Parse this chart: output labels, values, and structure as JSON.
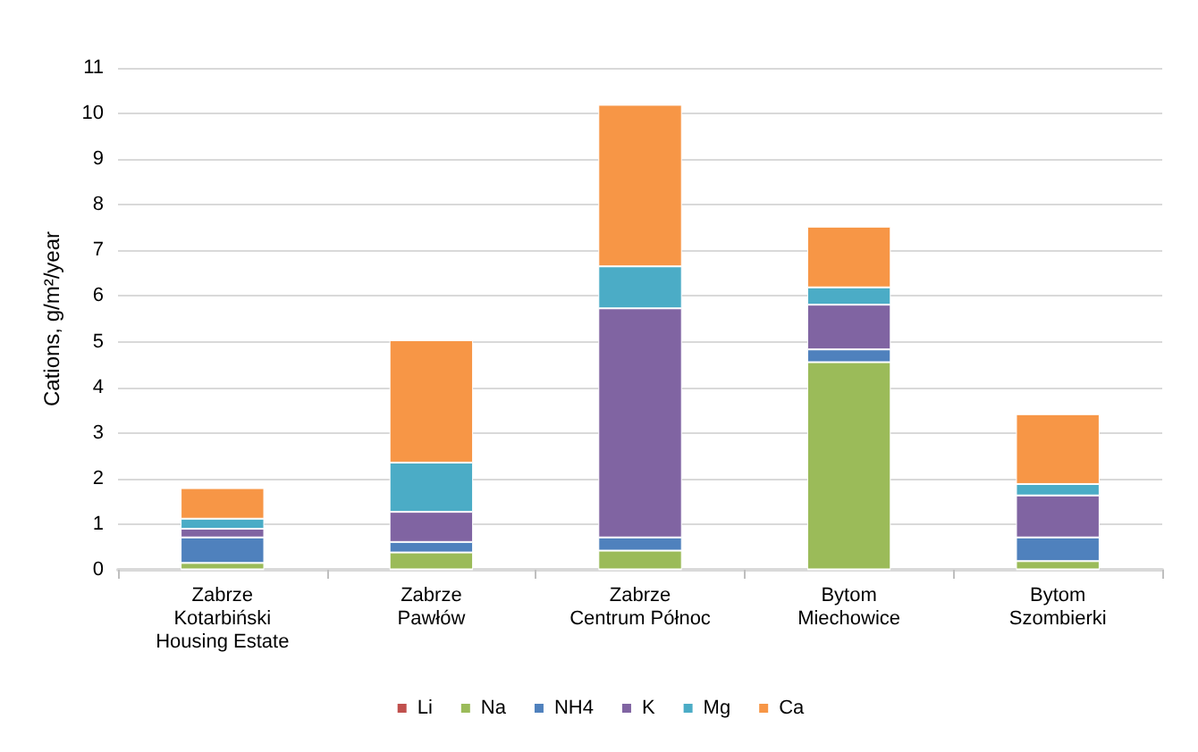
{
  "chart_data": {
    "type": "bar",
    "stacked": true,
    "ylabel": "Cations, g/m²/year",
    "categories": [
      "Zabrze\nKotarbiński\nHousing Estate",
      "Zabrze\nPawłów",
      "Zabrze\nCentrum Północ",
      "Bytom\nMiechowice",
      "Bytom\nSzombierki"
    ],
    "series": [
      {
        "name": "Li",
        "color": "#c0504d",
        "values": [
          0.01,
          0.01,
          0.01,
          0.01,
          0.01
        ]
      },
      {
        "name": "Na",
        "color": "#9bbb59",
        "values": [
          0.14,
          0.37,
          0.41,
          4.54,
          0.18
        ]
      },
      {
        "name": "NH4",
        "color": "#4f81bd",
        "values": [
          0.56,
          0.23,
          0.29,
          0.28,
          0.52
        ]
      },
      {
        "name": "K",
        "color": "#8064a2",
        "values": [
          0.19,
          0.66,
          5.02,
          0.98,
          0.92
        ]
      },
      {
        "name": "Mg",
        "color": "#4bacc6",
        "values": [
          0.22,
          1.08,
          0.92,
          0.38,
          0.25
        ]
      },
      {
        "name": "Ca",
        "color": "#f79646",
        "values": [
          0.67,
          2.68,
          3.54,
          1.33,
          1.53
        ]
      }
    ],
    "ylim": [
      0,
      11
    ],
    "yticks": [
      0,
      1,
      2,
      3,
      4,
      5,
      6,
      7,
      8,
      9,
      10,
      11
    ],
    "grid": "y",
    "legend": "bottom"
  }
}
